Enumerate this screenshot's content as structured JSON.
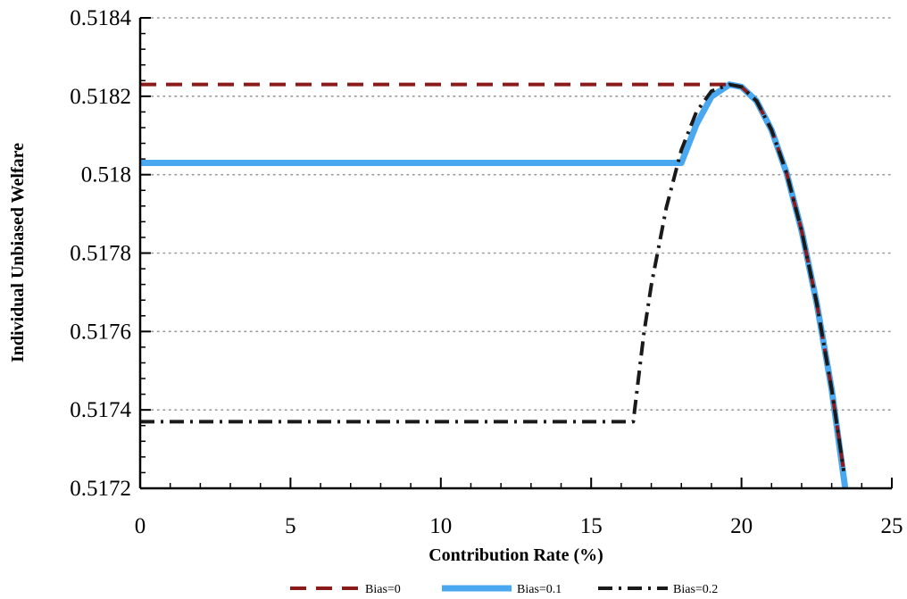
{
  "chart_data": {
    "type": "line",
    "title": "",
    "xlabel": "Contribution Rate (%)",
    "ylabel": "Individual Unbiased Welfare",
    "xlim": [
      0,
      25
    ],
    "ylim": [
      0.5172,
      0.5184
    ],
    "xticks": [
      0,
      5,
      10,
      15,
      20,
      25
    ],
    "xtick_labels": [
      "0",
      "5",
      "10",
      "15",
      "20",
      "25"
    ],
    "yticks": [
      0.5172,
      0.5174,
      0.5176,
      0.5178,
      0.518,
      0.5182,
      0.5184
    ],
    "ytick_labels": [
      "0.5172",
      "0.5174",
      "0.5176",
      "0.5178",
      "0.518",
      "0.5182",
      "0.5184"
    ],
    "grid": "horizontal dotted",
    "legend_position": "bottom",
    "series": [
      {
        "name": "Bias=0",
        "color": "#8b1a1a",
        "style": "dashed",
        "x": [
          0,
          19.6,
          20.0,
          20.5,
          21.0,
          21.5,
          22.0,
          22.5,
          23.0,
          23.4
        ],
        "y": [
          0.51823,
          0.51823,
          0.518224,
          0.518188,
          0.518114,
          0.518004,
          0.517857,
          0.517673,
          0.517452,
          0.517244
        ]
      },
      {
        "name": "Bias=0.1",
        "color": "#4aa8f0",
        "style": "solid",
        "x": [
          0,
          18.0,
          18.5,
          19.0,
          19.6,
          20.0,
          20.5,
          21.0,
          21.5,
          22.0,
          22.5,
          23.0,
          23.45
        ],
        "y": [
          0.51803,
          0.51803,
          0.518128,
          0.518199,
          0.51823,
          0.518224,
          0.518188,
          0.518114,
          0.518004,
          0.517857,
          0.517673,
          0.517452,
          0.5172
        ]
      },
      {
        "name": "Bias=0.2",
        "color": "#1a1a1a",
        "style": "dashdot",
        "x": [
          0,
          16.4,
          16.75,
          17.0,
          17.5,
          18.0,
          18.5,
          19.0,
          19.6,
          20.0,
          20.5,
          21.0,
          21.5,
          22.0,
          22.5,
          23.0,
          23.4
        ],
        "y": [
          0.51737,
          0.51737,
          0.517593,
          0.517718,
          0.517916,
          0.518063,
          0.51816,
          0.518213,
          0.51823,
          0.518224,
          0.518188,
          0.518114,
          0.518004,
          0.517857,
          0.517673,
          0.517452,
          0.517244
        ]
      }
    ]
  }
}
